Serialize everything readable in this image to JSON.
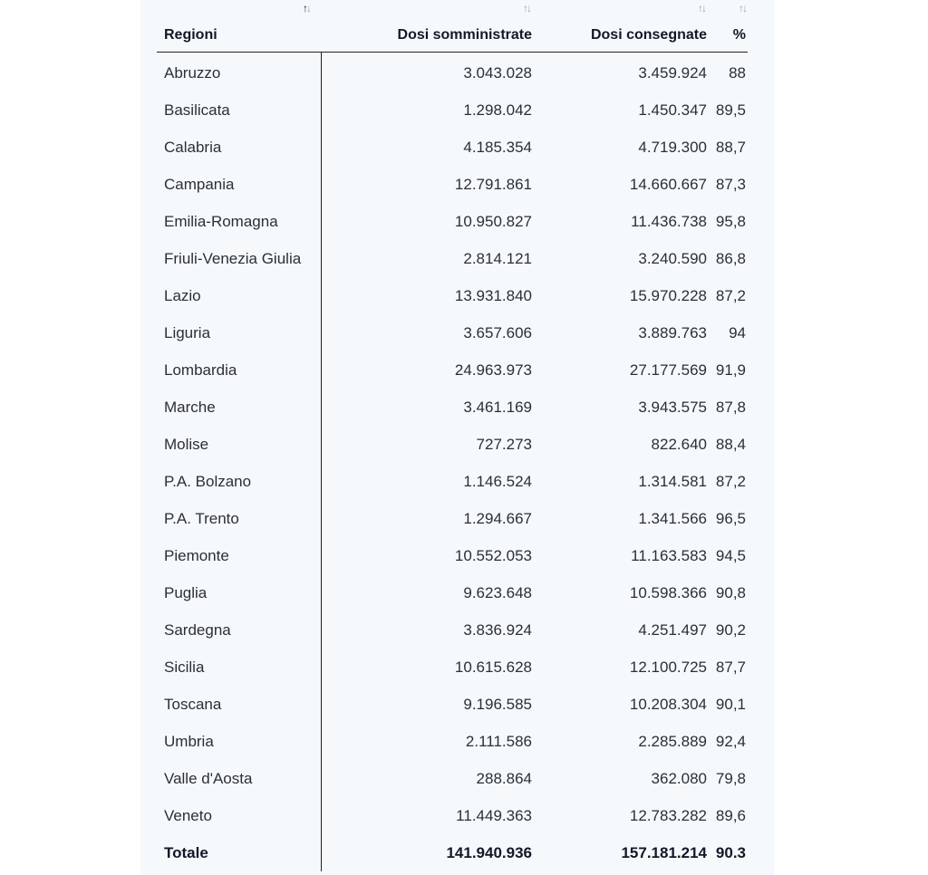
{
  "table": {
    "headers": {
      "region": "Regioni",
      "administered": "Dosi somministrate",
      "delivered": "Dosi consegnate",
      "percent": "%",
      "sort_icon": "sort-arrows-icon"
    },
    "rows": [
      {
        "region": "Abruzzo",
        "administered": "3.043.028",
        "delivered": "3.459.924",
        "percent": "88"
      },
      {
        "region": "Basilicata",
        "administered": "1.298.042",
        "delivered": "1.450.347",
        "percent": "89,5"
      },
      {
        "region": "Calabria",
        "administered": "4.185.354",
        "delivered": "4.719.300",
        "percent": "88,7"
      },
      {
        "region": "Campania",
        "administered": "12.791.861",
        "delivered": "14.660.667",
        "percent": "87,3"
      },
      {
        "region": "Emilia-Romagna",
        "administered": "10.950.827",
        "delivered": "11.436.738",
        "percent": "95,8"
      },
      {
        "region": "Friuli-Venezia Giulia",
        "administered": "2.814.121",
        "delivered": "3.240.590",
        "percent": "86,8"
      },
      {
        "region": "Lazio",
        "administered": "13.931.840",
        "delivered": "15.970.228",
        "percent": "87,2"
      },
      {
        "region": "Liguria",
        "administered": "3.657.606",
        "delivered": "3.889.763",
        "percent": "94"
      },
      {
        "region": "Lombardia",
        "administered": "24.963.973",
        "delivered": "27.177.569",
        "percent": "91,9"
      },
      {
        "region": "Marche",
        "administered": "3.461.169",
        "delivered": "3.943.575",
        "percent": "87,8"
      },
      {
        "region": "Molise",
        "administered": "727.273",
        "delivered": "822.640",
        "percent": "88,4"
      },
      {
        "region": "P.A. Bolzano",
        "administered": "1.146.524",
        "delivered": "1.314.581",
        "percent": "87,2"
      },
      {
        "region": "P.A. Trento",
        "administered": "1.294.667",
        "delivered": "1.341.566",
        "percent": "96,5"
      },
      {
        "region": "Piemonte",
        "administered": "10.552.053",
        "delivered": "11.163.583",
        "percent": "94,5"
      },
      {
        "region": "Puglia",
        "administered": "9.623.648",
        "delivered": "10.598.366",
        "percent": "90,8"
      },
      {
        "region": "Sardegna",
        "administered": "3.836.924",
        "delivered": "4.251.497",
        "percent": "90,2"
      },
      {
        "region": "Sicilia",
        "administered": "10.615.628",
        "delivered": "12.100.725",
        "percent": "87,7"
      },
      {
        "region": "Toscana",
        "administered": "9.196.585",
        "delivered": "10.208.304",
        "percent": "90,1"
      },
      {
        "region": "Umbria",
        "administered": "2.111.586",
        "delivered": "2.285.889",
        "percent": "92,4"
      },
      {
        "region": "Valle d'Aosta",
        "administered": "288.864",
        "delivered": "362.080",
        "percent": "79,8"
      },
      {
        "region": "Veneto",
        "administered": "11.449.363",
        "delivered": "12.783.282",
        "percent": "89,6"
      }
    ],
    "total": {
      "region": "Totale",
      "administered": "141.940.936",
      "delivered": "157.181.214",
      "percent": "90.3"
    }
  }
}
